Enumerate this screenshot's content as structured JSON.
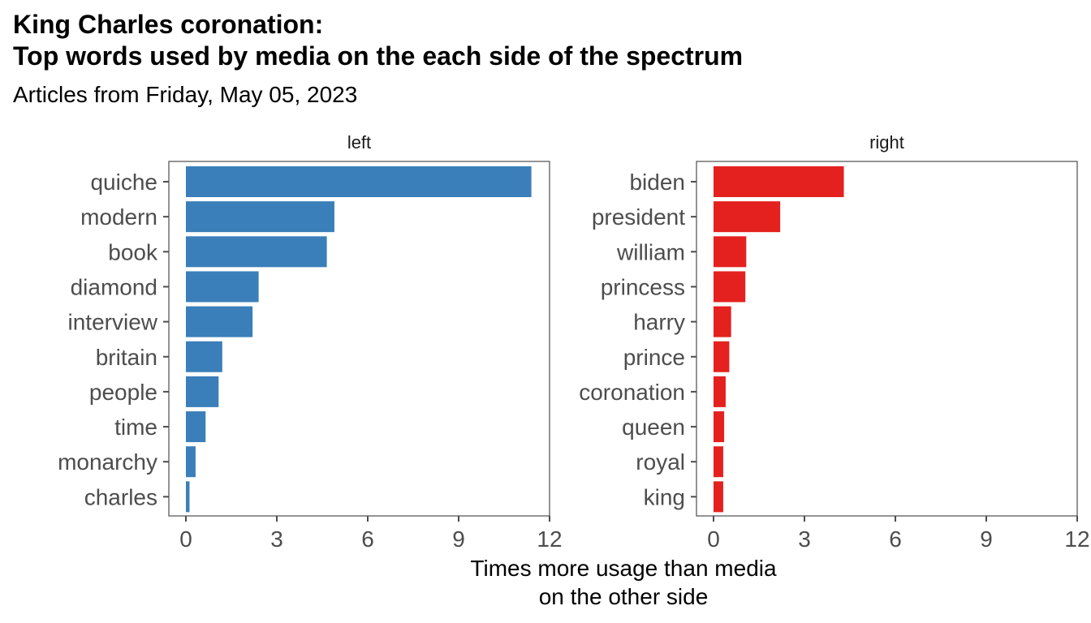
{
  "title_line1": "King Charles coronation:",
  "title_line2": "Top words used by media on the each side of the spectrum",
  "subtitle": "Articles from Friday, May 05, 2023",
  "xlabel_line1": "Times more usage than media",
  "xlabel_line2": "on the other side",
  "chart_data": {
    "type": "bar",
    "orientation": "horizontal",
    "facets": [
      {
        "name": "left",
        "color": "#3a7fb9",
        "categories": [
          "quiche",
          "modern",
          "book",
          "diamond",
          "interview",
          "britain",
          "people",
          "time",
          "monarchy",
          "charles"
        ],
        "values": [
          11.4,
          4.9,
          4.65,
          2.4,
          2.2,
          1.2,
          1.08,
          0.65,
          0.32,
          0.12
        ]
      },
      {
        "name": "right",
        "color": "#e4211e",
        "categories": [
          "biden",
          "president",
          "william",
          "princess",
          "harry",
          "prince",
          "coronation",
          "queen",
          "royal",
          "king"
        ],
        "values": [
          4.3,
          2.2,
          1.08,
          1.05,
          0.58,
          0.52,
          0.4,
          0.35,
          0.32,
          0.32
        ]
      }
    ],
    "xlim": [
      0,
      12
    ],
    "xticks": [
      0,
      3,
      6,
      9,
      12
    ],
    "xlabel": "Times more usage than media on the other side",
    "grid": false,
    "legend": "none"
  }
}
